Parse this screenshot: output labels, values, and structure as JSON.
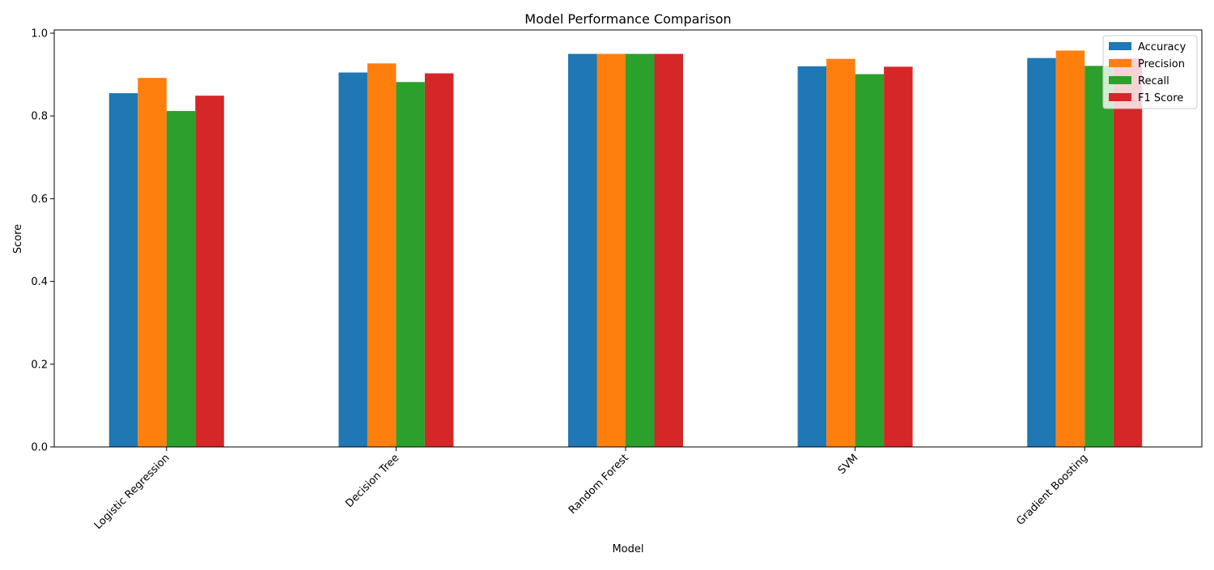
{
  "chart_data": {
    "type": "bar",
    "title": "Model Performance Comparison",
    "xlabel": "Model",
    "ylabel": "Score",
    "categories": [
      "Logistic Regression",
      "Decision Tree",
      "Random Forest",
      "SVM",
      "Gradient Boosting"
    ],
    "series": [
      {
        "name": "Accuracy",
        "color": "#1f77b4",
        "values": [
          0.855,
          0.905,
          0.95,
          0.92,
          0.94
        ]
      },
      {
        "name": "Precision",
        "color": "#ff7f0e",
        "values": [
          0.892,
          0.927,
          0.95,
          0.938,
          0.958
        ]
      },
      {
        "name": "Recall",
        "color": "#2ca02c",
        "values": [
          0.812,
          0.882,
          0.95,
          0.901,
          0.921
        ]
      },
      {
        "name": "F1 Score",
        "color": "#d62728",
        "values": [
          0.849,
          0.903,
          0.95,
          0.919,
          0.939
        ]
      }
    ],
    "ylim": [
      0,
      1.0
    ],
    "yticks": [
      "0.0",
      "0.2",
      "0.4",
      "0.6",
      "0.8",
      "1.0"
    ],
    "grid": false,
    "legend": "top-right"
  }
}
